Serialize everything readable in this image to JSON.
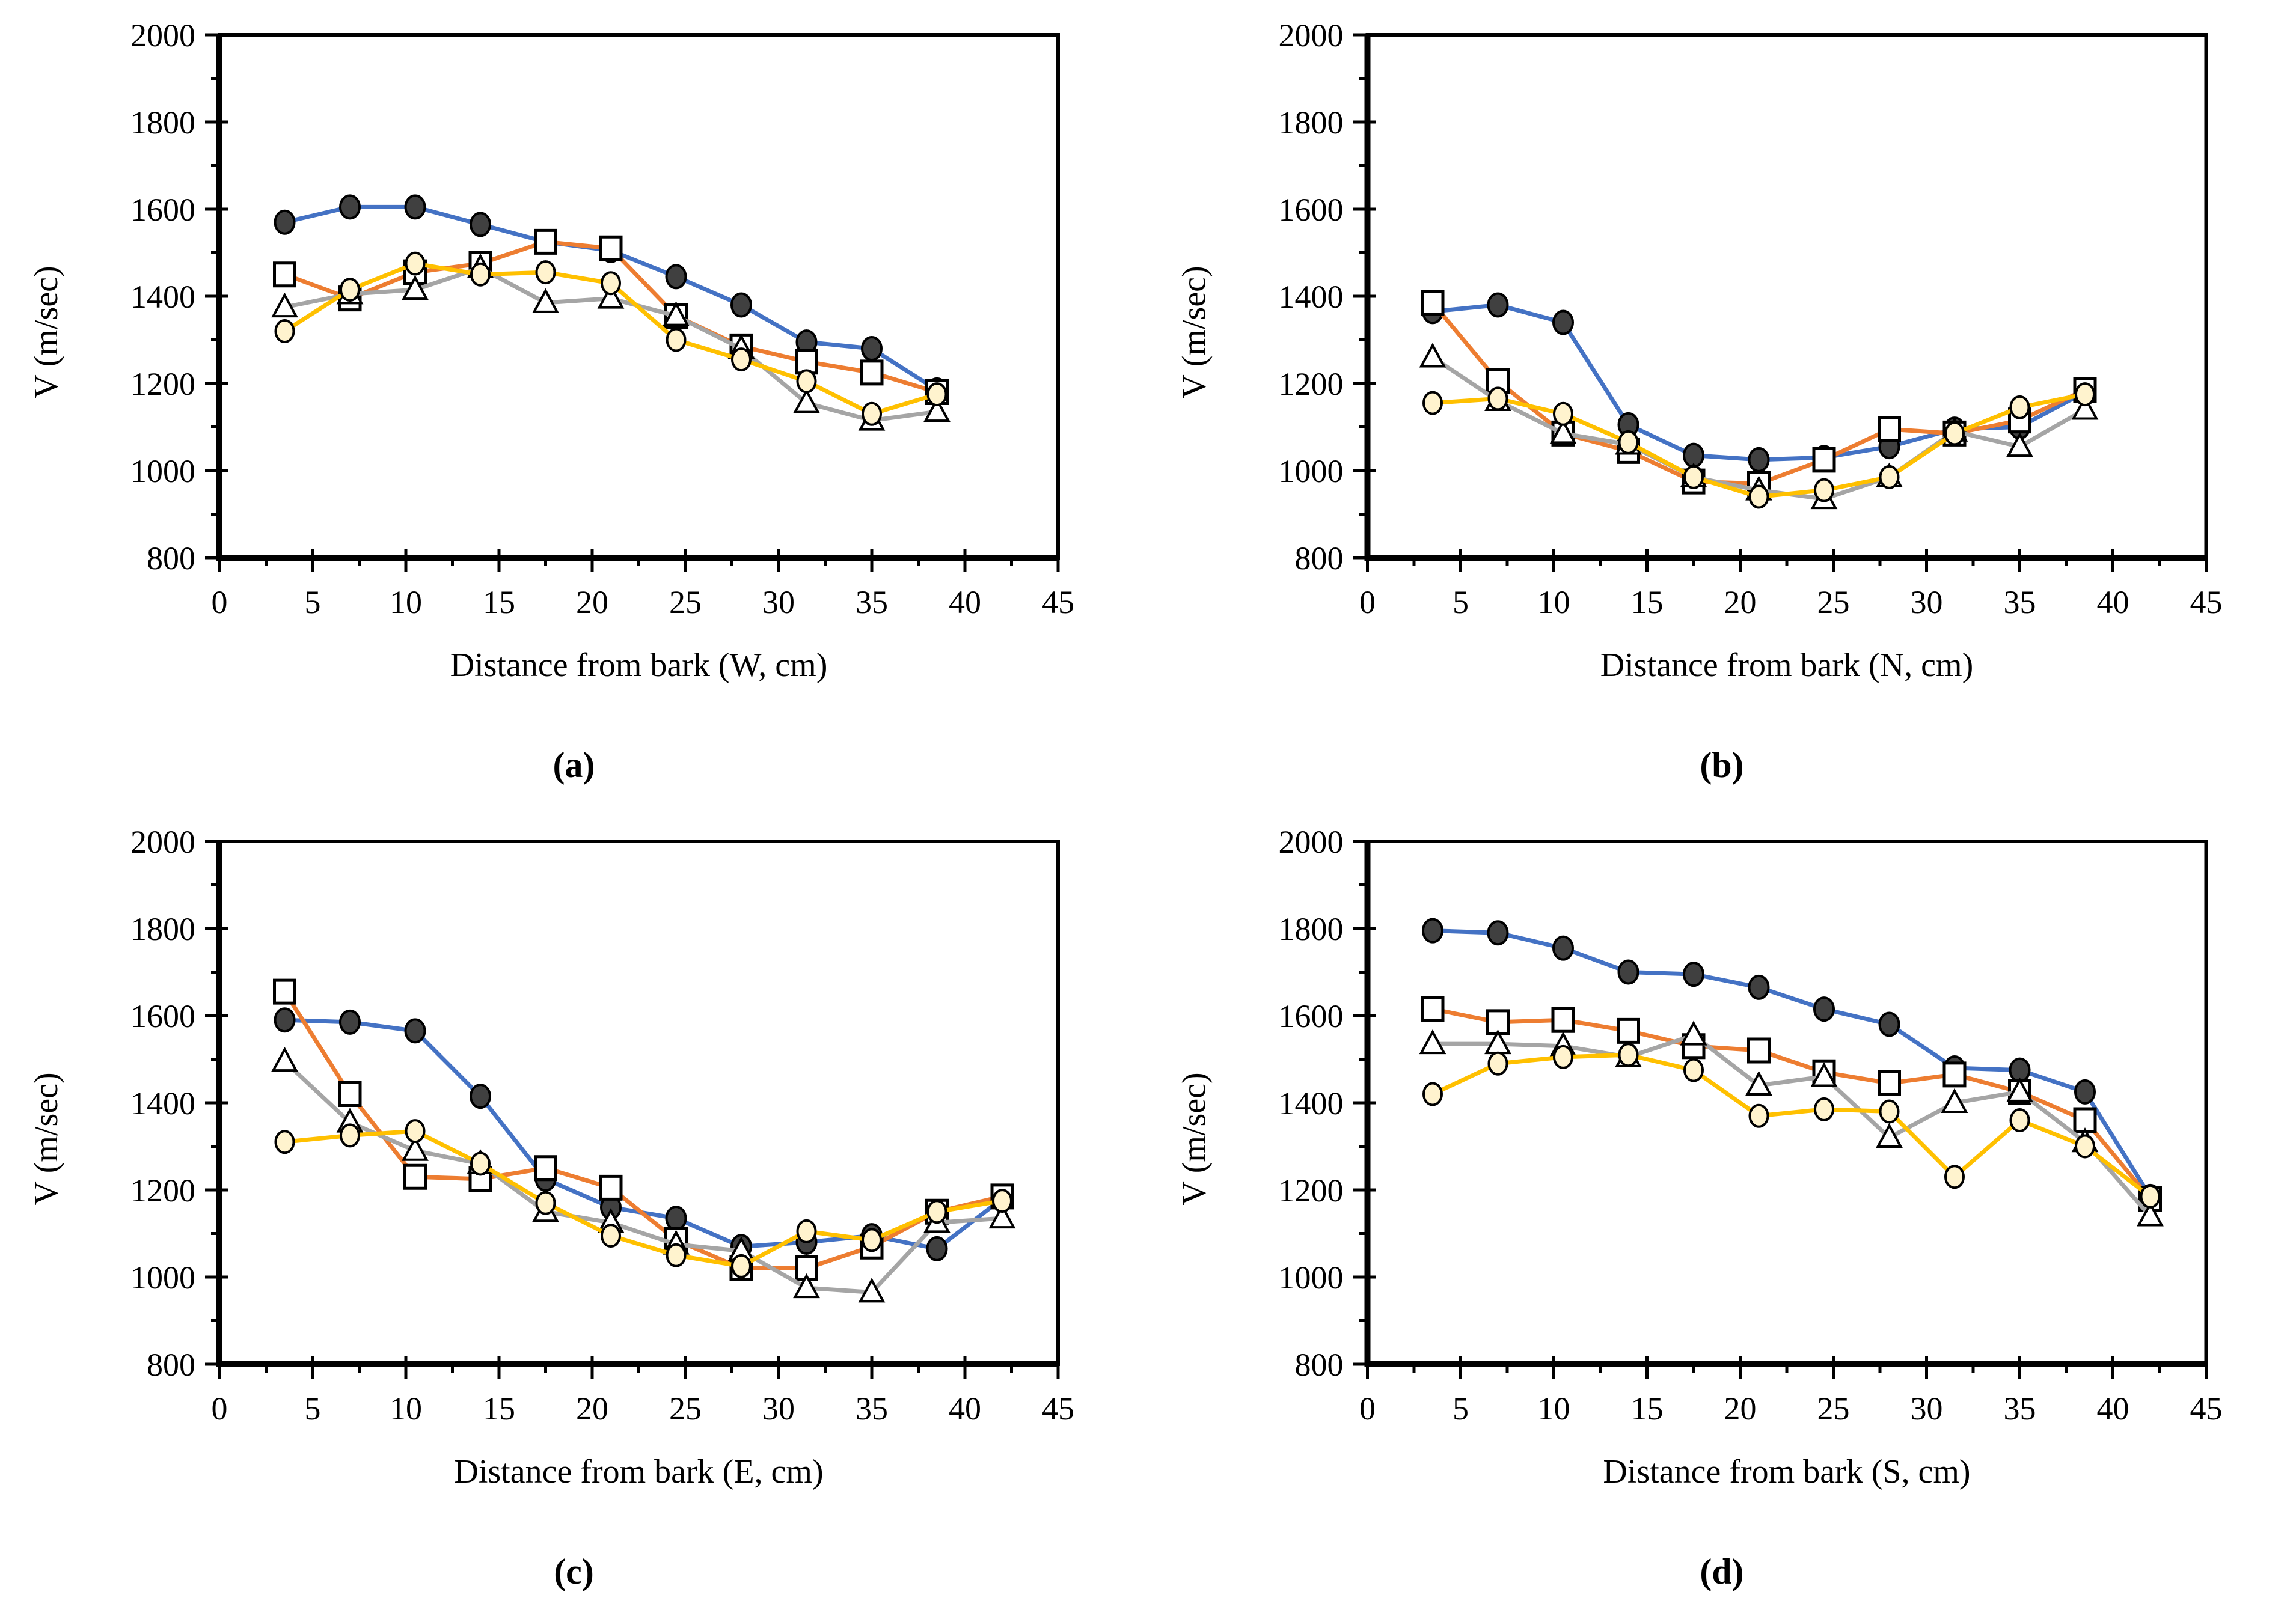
{
  "figure": {
    "background": "#ffffff",
    "axis_color": "#000000",
    "marker_outline": "#000000",
    "series_colors": {
      "blue": "#4472C4",
      "orange": "#ED7D31",
      "gray": "#A5A5A5",
      "yellow": "#FFC000"
    }
  },
  "chart_data": [
    {
      "type": "line",
      "caption": "(a)",
      "xlabel": "Distance from bark (W, cm)",
      "ylabel": "V (m/sec)",
      "xlim": [
        0,
        45
      ],
      "ylim": [
        800,
        2000
      ],
      "x_major_ticks": [
        0,
        5,
        10,
        15,
        20,
        25,
        30,
        35,
        40,
        45
      ],
      "x_minor_step": 2.5,
      "y_major_ticks": [
        800,
        1000,
        1200,
        1400,
        1600,
        1800,
        2000
      ],
      "y_minor_step": 100,
      "grid": false,
      "legend": "none",
      "x": [
        3.5,
        7,
        10.5,
        14,
        17.5,
        21,
        24.5,
        28,
        31.5,
        35,
        38.5
      ],
      "series": [
        {
          "name": "filled-circle",
          "color": "#4472C4",
          "marker": "filled-circle",
          "marker_fill": "#404040",
          "values": [
            1570,
            1605,
            1605,
            1565,
            1525,
            1505,
            1445,
            1380,
            1295,
            1280,
            1185
          ]
        },
        {
          "name": "open-square",
          "color": "#ED7D31",
          "marker": "open-square",
          "marker_fill": "#FFFFFF",
          "values": [
            1450,
            1395,
            1455,
            1475,
            1525,
            1510,
            1355,
            1285,
            1250,
            1225,
            1180
          ]
        },
        {
          "name": "open-triangle",
          "color": "#A5A5A5",
          "marker": "open-triangle",
          "marker_fill": "#FFFFFF",
          "values": [
            1375,
            1405,
            1415,
            1465,
            1385,
            1395,
            1355,
            1280,
            1155,
            1115,
            1135
          ]
        },
        {
          "name": "open-circle",
          "color": "#FFC000",
          "marker": "open-circle",
          "marker_fill": "#FFF3CE",
          "values": [
            1320,
            1415,
            1475,
            1450,
            1455,
            1430,
            1300,
            1255,
            1205,
            1130,
            1175
          ]
        }
      ]
    },
    {
      "type": "line",
      "caption": "(b)",
      "xlabel": "Distance from bark (N, cm)",
      "ylabel": "V (m/sec)",
      "xlim": [
        0,
        45
      ],
      "ylim": [
        800,
        2000
      ],
      "x_major_ticks": [
        0,
        5,
        10,
        15,
        20,
        25,
        30,
        35,
        40,
        45
      ],
      "x_minor_step": 2.5,
      "y_major_ticks": [
        800,
        1000,
        1200,
        1400,
        1600,
        1800,
        2000
      ],
      "y_minor_step": 100,
      "grid": false,
      "legend": "none",
      "x": [
        3.5,
        7,
        10.5,
        14,
        17.5,
        21,
        24.5,
        28,
        31.5,
        35,
        38.5
      ],
      "series": [
        {
          "name": "filled-circle",
          "color": "#4472C4",
          "marker": "filled-circle",
          "marker_fill": "#404040",
          "values": [
            1365,
            1380,
            1340,
            1105,
            1035,
            1025,
            1030,
            1055,
            1095,
            1100,
            1180
          ]
        },
        {
          "name": "open-square",
          "color": "#ED7D31",
          "marker": "open-square",
          "marker_fill": "#FFFFFF",
          "values": [
            1385,
            1205,
            1085,
            1045,
            975,
            970,
            1025,
            1095,
            1085,
            1115,
            1185
          ]
        },
        {
          "name": "open-triangle",
          "color": "#A5A5A5",
          "marker": "open-triangle",
          "marker_fill": "#FFFFFF",
          "values": [
            1260,
            1160,
            1085,
            1060,
            985,
            955,
            935,
            985,
            1090,
            1055,
            1140
          ]
        },
        {
          "name": "open-circle",
          "color": "#FFC000",
          "marker": "open-circle",
          "marker_fill": "#FFF3CE",
          "values": [
            1155,
            1165,
            1130,
            1065,
            985,
            940,
            955,
            985,
            1085,
            1145,
            1175
          ]
        }
      ]
    },
    {
      "type": "line",
      "caption": "(c)",
      "xlabel": "Distance from bark (E, cm)",
      "ylabel": "V (m/sec)",
      "xlim": [
        0,
        45
      ],
      "ylim": [
        800,
        2000
      ],
      "x_major_ticks": [
        0,
        5,
        10,
        15,
        20,
        25,
        30,
        35,
        40,
        45
      ],
      "x_minor_step": 2.5,
      "y_major_ticks": [
        800,
        1000,
        1200,
        1400,
        1600,
        1800,
        2000
      ],
      "y_minor_step": 100,
      "grid": false,
      "legend": "none",
      "x": [
        3.5,
        7,
        10.5,
        14,
        17.5,
        21,
        24.5,
        28,
        31.5,
        35,
        38.5,
        42
      ],
      "series": [
        {
          "name": "filled-circle",
          "color": "#4472C4",
          "marker": "filled-circle",
          "marker_fill": "#404040",
          "values": [
            1590,
            1585,
            1565,
            1415,
            1225,
            1160,
            1135,
            1070,
            1080,
            1095,
            1065,
            1180
          ]
        },
        {
          "name": "open-square",
          "color": "#ED7D31",
          "marker": "open-square",
          "marker_fill": "#FFFFFF",
          "values": [
            1655,
            1420,
            1230,
            1225,
            1250,
            1205,
            1085,
            1020,
            1020,
            1070,
            1150,
            1185
          ]
        },
        {
          "name": "open-triangle",
          "color": "#A5A5A5",
          "marker": "open-triangle",
          "marker_fill": "#FFFFFF",
          "values": [
            1495,
            1355,
            1290,
            1260,
            1150,
            1125,
            1075,
            1060,
            975,
            965,
            1125,
            1135
          ]
        },
        {
          "name": "open-circle",
          "color": "#FFC000",
          "marker": "open-circle",
          "marker_fill": "#FFF3CE",
          "values": [
            1310,
            1325,
            1335,
            1260,
            1170,
            1095,
            1050,
            1025,
            1105,
            1085,
            1150,
            1175
          ]
        }
      ]
    },
    {
      "type": "line",
      "caption": "(d)",
      "xlabel": "Distance from bark (S, cm)",
      "ylabel": "V (m/sec)",
      "xlim": [
        0,
        45
      ],
      "ylim": [
        800,
        2000
      ],
      "x_major_ticks": [
        0,
        5,
        10,
        15,
        20,
        25,
        30,
        35,
        40,
        45
      ],
      "x_minor_step": 2.5,
      "y_major_ticks": [
        800,
        1000,
        1200,
        1400,
        1600,
        1800,
        2000
      ],
      "y_minor_step": 100,
      "grid": false,
      "legend": "none",
      "x": [
        3.5,
        7,
        10.5,
        14,
        17.5,
        21,
        24.5,
        28,
        31.5,
        35,
        38.5,
        42
      ],
      "series": [
        {
          "name": "filled-circle",
          "color": "#4472C4",
          "marker": "filled-circle",
          "marker_fill": "#404040",
          "values": [
            1795,
            1790,
            1755,
            1700,
            1695,
            1665,
            1615,
            1580,
            1480,
            1475,
            1425,
            1185
          ]
        },
        {
          "name": "open-square",
          "color": "#ED7D31",
          "marker": "open-square",
          "marker_fill": "#FFFFFF",
          "values": [
            1615,
            1585,
            1590,
            1565,
            1530,
            1520,
            1470,
            1445,
            1465,
            1425,
            1360,
            1180
          ]
        },
        {
          "name": "open-triangle",
          "color": "#A5A5A5",
          "marker": "open-triangle",
          "marker_fill": "#FFFFFF",
          "values": [
            1535,
            1535,
            1530,
            1505,
            1555,
            1440,
            1460,
            1320,
            1400,
            1425,
            1310,
            1140
          ]
        },
        {
          "name": "open-circle",
          "color": "#FFC000",
          "marker": "open-circle",
          "marker_fill": "#FFF3CE",
          "values": [
            1420,
            1490,
            1505,
            1510,
            1475,
            1370,
            1385,
            1380,
            1230,
            1360,
            1300,
            1185
          ]
        }
      ]
    }
  ]
}
